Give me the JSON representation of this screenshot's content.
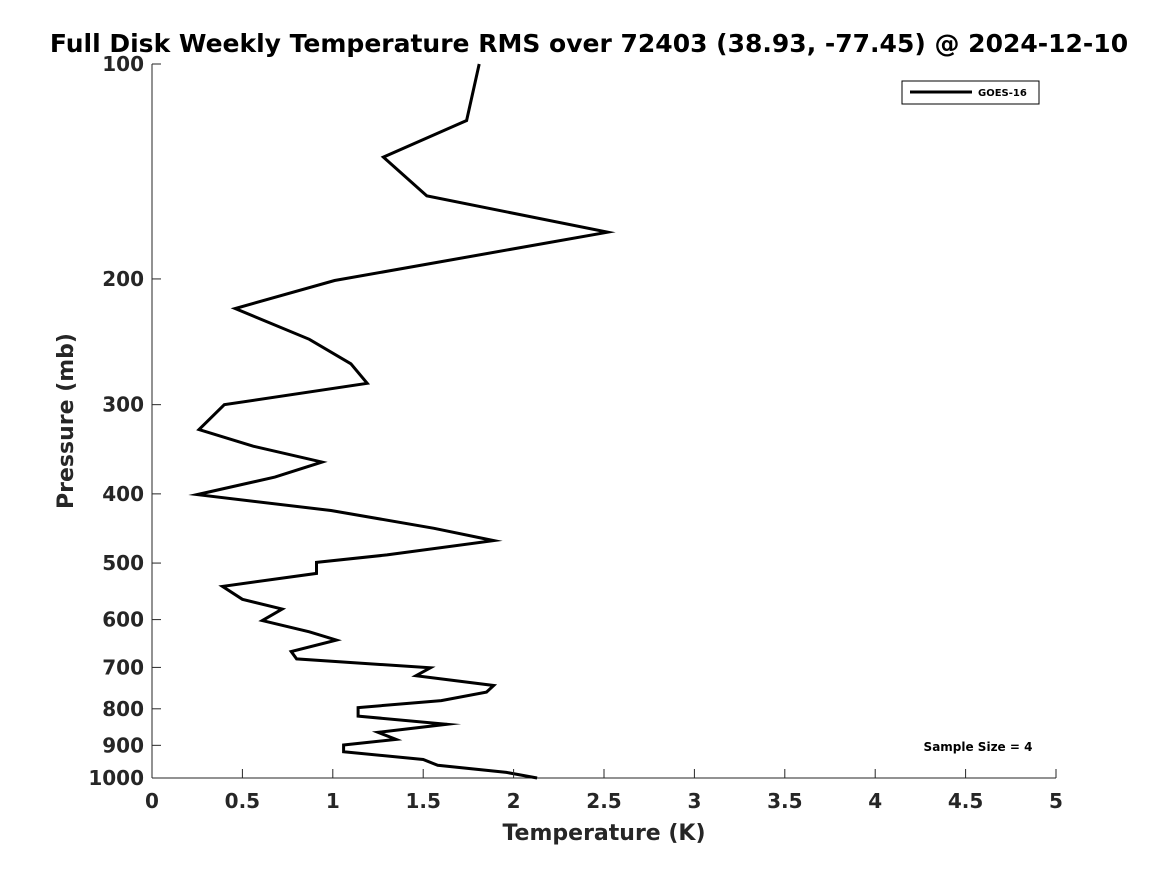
{
  "chart_data": {
    "type": "line",
    "title": "Full Disk Weekly Temperature RMS over 72403 (38.93, -77.45) @ 2024-12-10",
    "xlabel": "Temperature (K)",
    "ylabel": "Pressure (mb)",
    "xlim": [
      0,
      5
    ],
    "ylim": [
      100,
      1000
    ],
    "yscale": "log",
    "yaxis_reversed": true,
    "grid": false,
    "legend_position": "top-right",
    "x_ticks": [
      "0",
      "0.5",
      "1",
      "1.5",
      "2",
      "2.5",
      "3",
      "3.5",
      "4",
      "4.5",
      "5"
    ],
    "y_ticks": [
      "100",
      "200",
      "300",
      "400",
      "500",
      "600",
      "700",
      "800",
      "900",
      "1000"
    ],
    "series": [
      {
        "name": "GOES-16",
        "color": "#000000",
        "points": [
          [
            1.81,
            100
          ],
          [
            1.74,
            120
          ],
          [
            1.28,
            135
          ],
          [
            1.52,
            153
          ],
          [
            2.52,
            172
          ],
          [
            1.01,
            201
          ],
          [
            0.46,
            220
          ],
          [
            0.87,
            243
          ],
          [
            1.1,
            263
          ],
          [
            1.19,
            280
          ],
          [
            0.4,
            300
          ],
          [
            0.26,
            325
          ],
          [
            0.56,
            343
          ],
          [
            0.94,
            361
          ],
          [
            0.68,
            379
          ],
          [
            0.25,
            401
          ],
          [
            0.99,
            422
          ],
          [
            1.56,
            447
          ],
          [
            1.89,
            465
          ],
          [
            1.3,
            487
          ],
          [
            0.91,
            499
          ],
          [
            0.91,
            517
          ],
          [
            0.39,
            539
          ],
          [
            0.5,
            562
          ],
          [
            0.72,
            580
          ],
          [
            0.61,
            602
          ],
          [
            0.87,
            624
          ],
          [
            1.02,
            641
          ],
          [
            0.77,
            665
          ],
          [
            0.8,
            681
          ],
          [
            1.54,
            701
          ],
          [
            1.46,
            719
          ],
          [
            1.89,
            742
          ],
          [
            1.85,
            758
          ],
          [
            1.6,
            779
          ],
          [
            1.14,
            797
          ],
          [
            1.14,
            819
          ],
          [
            1.63,
            841
          ],
          [
            1.25,
            863
          ],
          [
            1.35,
            883
          ],
          [
            1.06,
            899
          ],
          [
            1.06,
            919
          ],
          [
            1.5,
            942
          ],
          [
            1.58,
            960
          ],
          [
            1.96,
            982
          ],
          [
            2.13,
            1000
          ]
        ]
      }
    ],
    "annotation": "Sample Size = 4"
  }
}
